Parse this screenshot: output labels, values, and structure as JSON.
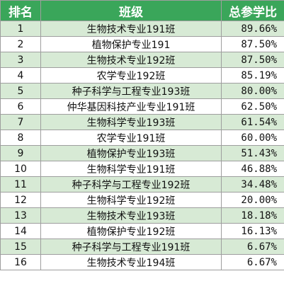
{
  "table": {
    "headers": [
      "排名",
      "班级",
      "总参学比"
    ],
    "rows": [
      {
        "rank": "1",
        "class": "生物技术专业191班",
        "rate": "89.66%"
      },
      {
        "rank": "2",
        "class": "植物保护专业191",
        "rate": "87.50%"
      },
      {
        "rank": "3",
        "class": "生物技术专业192班",
        "rate": "87.50%"
      },
      {
        "rank": "4",
        "class": "农学专业192班",
        "rate": "85.19%"
      },
      {
        "rank": "5",
        "class": "种子科学与工程专业193班",
        "rate": "80.00%"
      },
      {
        "rank": "6",
        "class": "仲华基因科技产业专业191班",
        "rate": "62.50%"
      },
      {
        "rank": "7",
        "class": "生物科学专业193班",
        "rate": "61.54%"
      },
      {
        "rank": "8",
        "class": "农学专业191班",
        "rate": "60.00%"
      },
      {
        "rank": "9",
        "class": "植物保护专业193班",
        "rate": "51.43%"
      },
      {
        "rank": "10",
        "class": "生物科学专业191班",
        "rate": "46.88%"
      },
      {
        "rank": "11",
        "class": "种子科学与工程专业192班",
        "rate": "34.48%"
      },
      {
        "rank": "12",
        "class": "生物科学专业192班",
        "rate": "20.00%"
      },
      {
        "rank": "13",
        "class": "生物技术专业193班",
        "rate": "18.18%"
      },
      {
        "rank": "14",
        "class": "植物保护专业192班",
        "rate": "16.13%"
      },
      {
        "rank": "15",
        "class": "种子科学与工程专业191班",
        "rate": "6.67%"
      },
      {
        "rank": "16",
        "class": "生物技术专业194班",
        "rate": "6.67%"
      }
    ]
  },
  "colors": {
    "header_bg": "#3aa65a",
    "header_text": "#ffffff",
    "band_row": "#d7ead5",
    "plain_row": "#ffffff",
    "border": "#9e9e9e"
  }
}
